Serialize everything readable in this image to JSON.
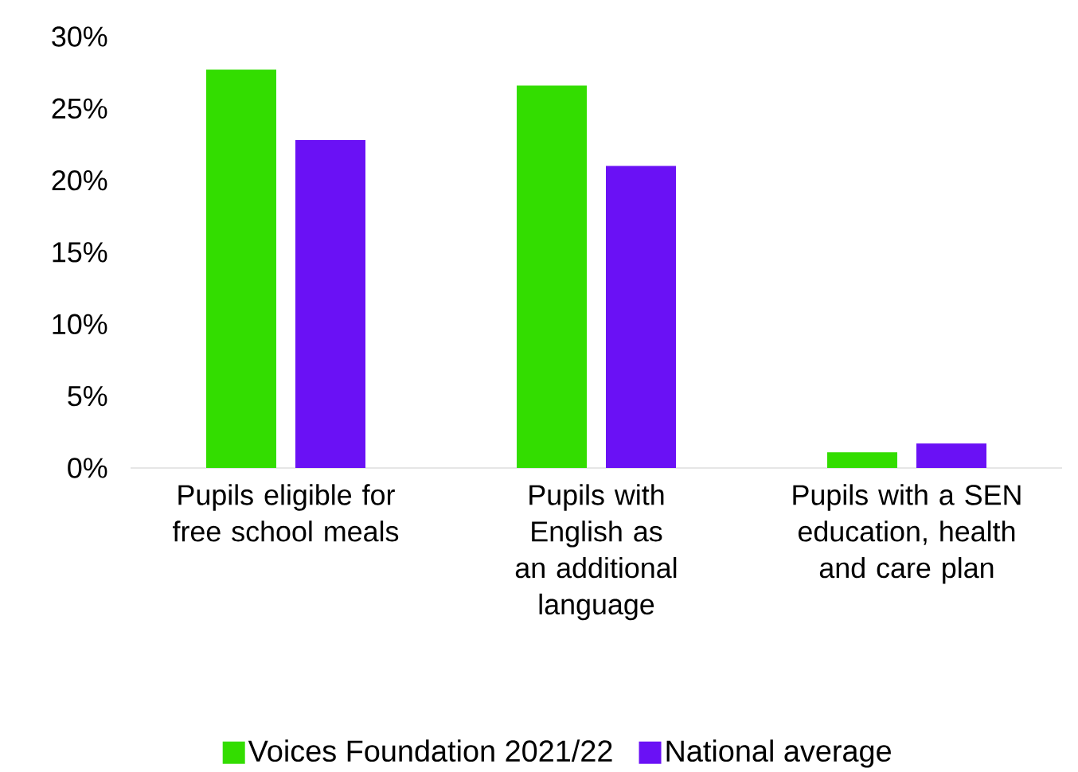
{
  "chart_data": {
    "type": "bar",
    "categories": [
      "Pupils eligible for free school meals",
      "Pupils with English as an additional language",
      "Pupils with a SEN education, health and care plan"
    ],
    "series": [
      {
        "name": "Voices Foundation 2021/22",
        "color": "#33dd00",
        "values": [
          27.7,
          26.6,
          1.1
        ]
      },
      {
        "name": "National average",
        "color": "#6a11f5",
        "values": [
          22.8,
          21.0,
          1.7
        ]
      }
    ],
    "ylim": [
      0,
      30
    ],
    "yticks": [
      {
        "value": 0,
        "label": "0%"
      },
      {
        "value": 5,
        "label": "5%"
      },
      {
        "value": 10,
        "label": "10%"
      },
      {
        "value": 15,
        "label": "15%"
      },
      {
        "value": 20,
        "label": "20%"
      },
      {
        "value": 25,
        "label": "25%"
      },
      {
        "value": 30,
        "label": "30%"
      }
    ],
    "grid": false,
    "legend": "bottom"
  }
}
